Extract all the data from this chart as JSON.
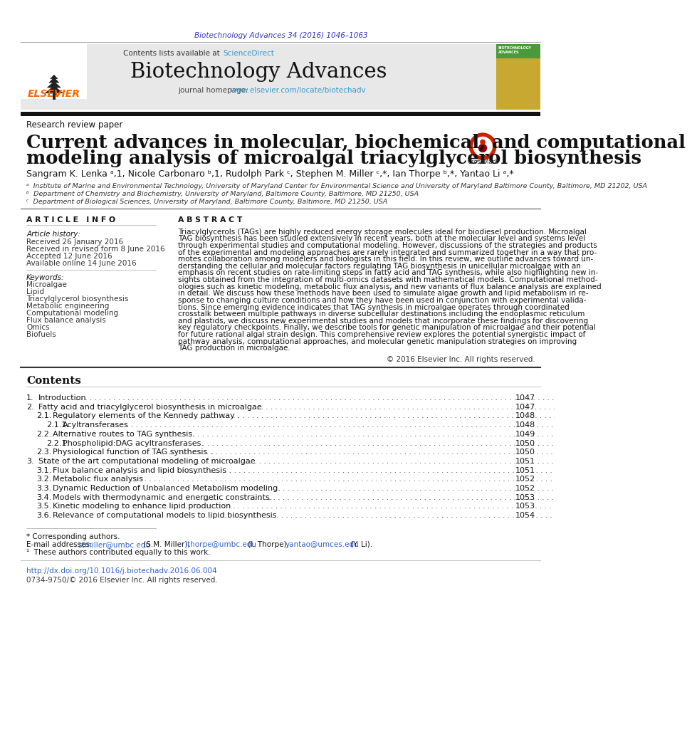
{
  "page_bg": "#ffffff",
  "top_citation": "Biotechnology Advances 34 (2016) 1046–1063",
  "top_citation_color": "#3333cc",
  "journal_name": "Biotechnology Advances",
  "header_bg": "#e8e8e8",
  "contents_label": "Contents lists available at ",
  "sciencedirect_text": "ScienceDirect",
  "sciencedirect_color": "#3399cc",
  "journal_homepage_text": "journal homepage: ",
  "journal_url": "www.elsevier.com/locate/biotechadv",
  "journal_url_color": "#3399cc",
  "elsevier_color": "#ff6600",
  "section_label": "Research review paper",
  "article_title_line1": "Current advances in molecular, biochemical, and computational",
  "article_title_line2": "modeling analysis of microalgal triacylglycerol biosynthesis",
  "affil_a": "ᵃ  Institute of Marine and Environmental Technology, University of Maryland Center for Environmental Science and University of Maryland Baltimore County, Baltimore, MD 21202, USA",
  "affil_b": "ᵇ  Department of Chemistry and Biochemistry, University of Maryland, Baltimore County, Baltimore, MD 21250, USA",
  "affil_c": "ᶜ  Department of Biological Sciences, University of Maryland, Baltimore County, Baltimore, MD 21250, USA",
  "article_info_title": "A R T I C L E   I N F O",
  "abstract_title": "A B S T R A C T",
  "article_history_label": "Article history:",
  "received_1": "Received 26 January 2016",
  "received_revised": "Received in revised form 8 June 2016",
  "accepted": "Accepted 12 June 2016",
  "available": "Available online 14 June 2016",
  "keywords_label": "Keywords:",
  "keywords": [
    "Microalgae",
    "Lipid",
    "Triacylglycerol biosynthesis",
    "Metabolic engineering",
    "Computational modeling",
    "Flux balance analysis",
    "Omics",
    "Biofuels"
  ],
  "copyright_text": "© 2016 Elsevier Inc. All rights reserved.",
  "contents_title": "Contents",
  "footer_note": "* Corresponding authors.",
  "footer_footnote": "¹  These authors contributed equally to this work.",
  "doi_text": "http://dx.doi.org/10.1016/j.biotechadv.2016.06.004",
  "doi_color": "#3366cc",
  "issn_text": "0734-9750/© 2016 Elsevier Inc. All rights reserved.",
  "abstract_lines": [
    "Triacylglycerols (TAGs) are highly reduced energy storage molecules ideal for biodiesel production. Microalgal",
    "TAG biosynthesis has been studied extensively in recent years, both at the molecular level and systems level",
    "through experimental studies and computational modeling. However, discussions of the strategies and products",
    "of the experimental and modeling approaches are rarely integrated and summarized together in a way that pro-",
    "motes collaboration among modelers and biologists in this field. In this review, we outline advances toward un-",
    "derstanding the cellular and molecular factors regulating TAG biosynthesis in unicellular microalgae with an",
    "emphasis on recent studies on rate-limiting steps in fatty acid and TAG synthesis, while also highlighting new in-",
    "sights obtained from the integration of multi-omics datasets with mathematical models. Computational method-",
    "ologies such as kinetic modeling, metabolic flux analysis, and new variants of flux balance analysis are explained",
    "in detail. We discuss how these methods have been used to simulate algae growth and lipid metabolism in re-",
    "sponse to changing culture conditions and how they have been used in conjunction with experimental valida-",
    "tions. Since emerging evidence indicates that TAG synthesis in microalgae operates through coordinated",
    "crosstalk between multiple pathways in diverse subcellular destinations including the endoplasmic reticulum",
    "and plastids, we discuss new experimental studies and models that incorporate these findings for discovering",
    "key regulatory checkpoints. Finally, we describe tools for genetic manipulation of microalgae and their potential",
    "for future rational algal strain design. This comprehensive review explores the potential synergistic impact of",
    "pathway analysis, computational approaches, and molecular genetic manipulation strategies on improving",
    "TAG production in microalgae."
  ],
  "contents_data": [
    {
      "num": "1.",
      "title": "Introduction",
      "subtitle": "",
      "page": "1047",
      "indent": 0
    },
    {
      "num": "2.",
      "title": "Fatty acid and triacylglycerol biosynthesis in microalgae",
      "subtitle": "",
      "page": "1047",
      "indent": 0
    },
    {
      "num": "",
      "title": "2.1.",
      "subtitle": "Regulatory elements of the Kennedy pathway .",
      "page": "1048",
      "indent": 1
    },
    {
      "num": "",
      "title": "2.1.1.",
      "subtitle": "Acyltransferases",
      "page": "1048",
      "indent": 2
    },
    {
      "num": "",
      "title": "2.2.",
      "subtitle": "Alternative routes to TAG synthesis.",
      "page": "1049",
      "indent": 1
    },
    {
      "num": "",
      "title": "2.2.1.",
      "subtitle": "Phospholipid:DAG acyltransferases.",
      "page": "1050",
      "indent": 2
    },
    {
      "num": "",
      "title": "2.3.",
      "subtitle": "Physiological function of TAG synthesis .",
      "page": "1050",
      "indent": 1
    },
    {
      "num": "3.",
      "title": "State of the art computational modeling of microalgae",
      "subtitle": "",
      "page": "1051",
      "indent": 0
    },
    {
      "num": "",
      "title": "3.1.",
      "subtitle": "Flux balance analysis and lipid biosynthesis .",
      "page": "1051",
      "indent": 1
    },
    {
      "num": "",
      "title": "3.2.",
      "subtitle": "Metabolic flux analysis",
      "page": "1052",
      "indent": 1
    },
    {
      "num": "",
      "title": "3.3.",
      "subtitle": "Dynamic Reduction of Unbalanced Metabolism modeling.",
      "page": "1052",
      "indent": 1
    },
    {
      "num": "",
      "title": "3.4.",
      "subtitle": "Models with thermodynamic and energetic constraints.",
      "page": "1053",
      "indent": 1
    },
    {
      "num": "",
      "title": "3.5.",
      "subtitle": "Kinetic modeling to enhance lipid production",
      "page": "1053",
      "indent": 1
    },
    {
      "num": "",
      "title": "3.6.",
      "subtitle": "Relevance of computational models to lipid biosynthesis",
      "page": "1054",
      "indent": 1
    }
  ]
}
